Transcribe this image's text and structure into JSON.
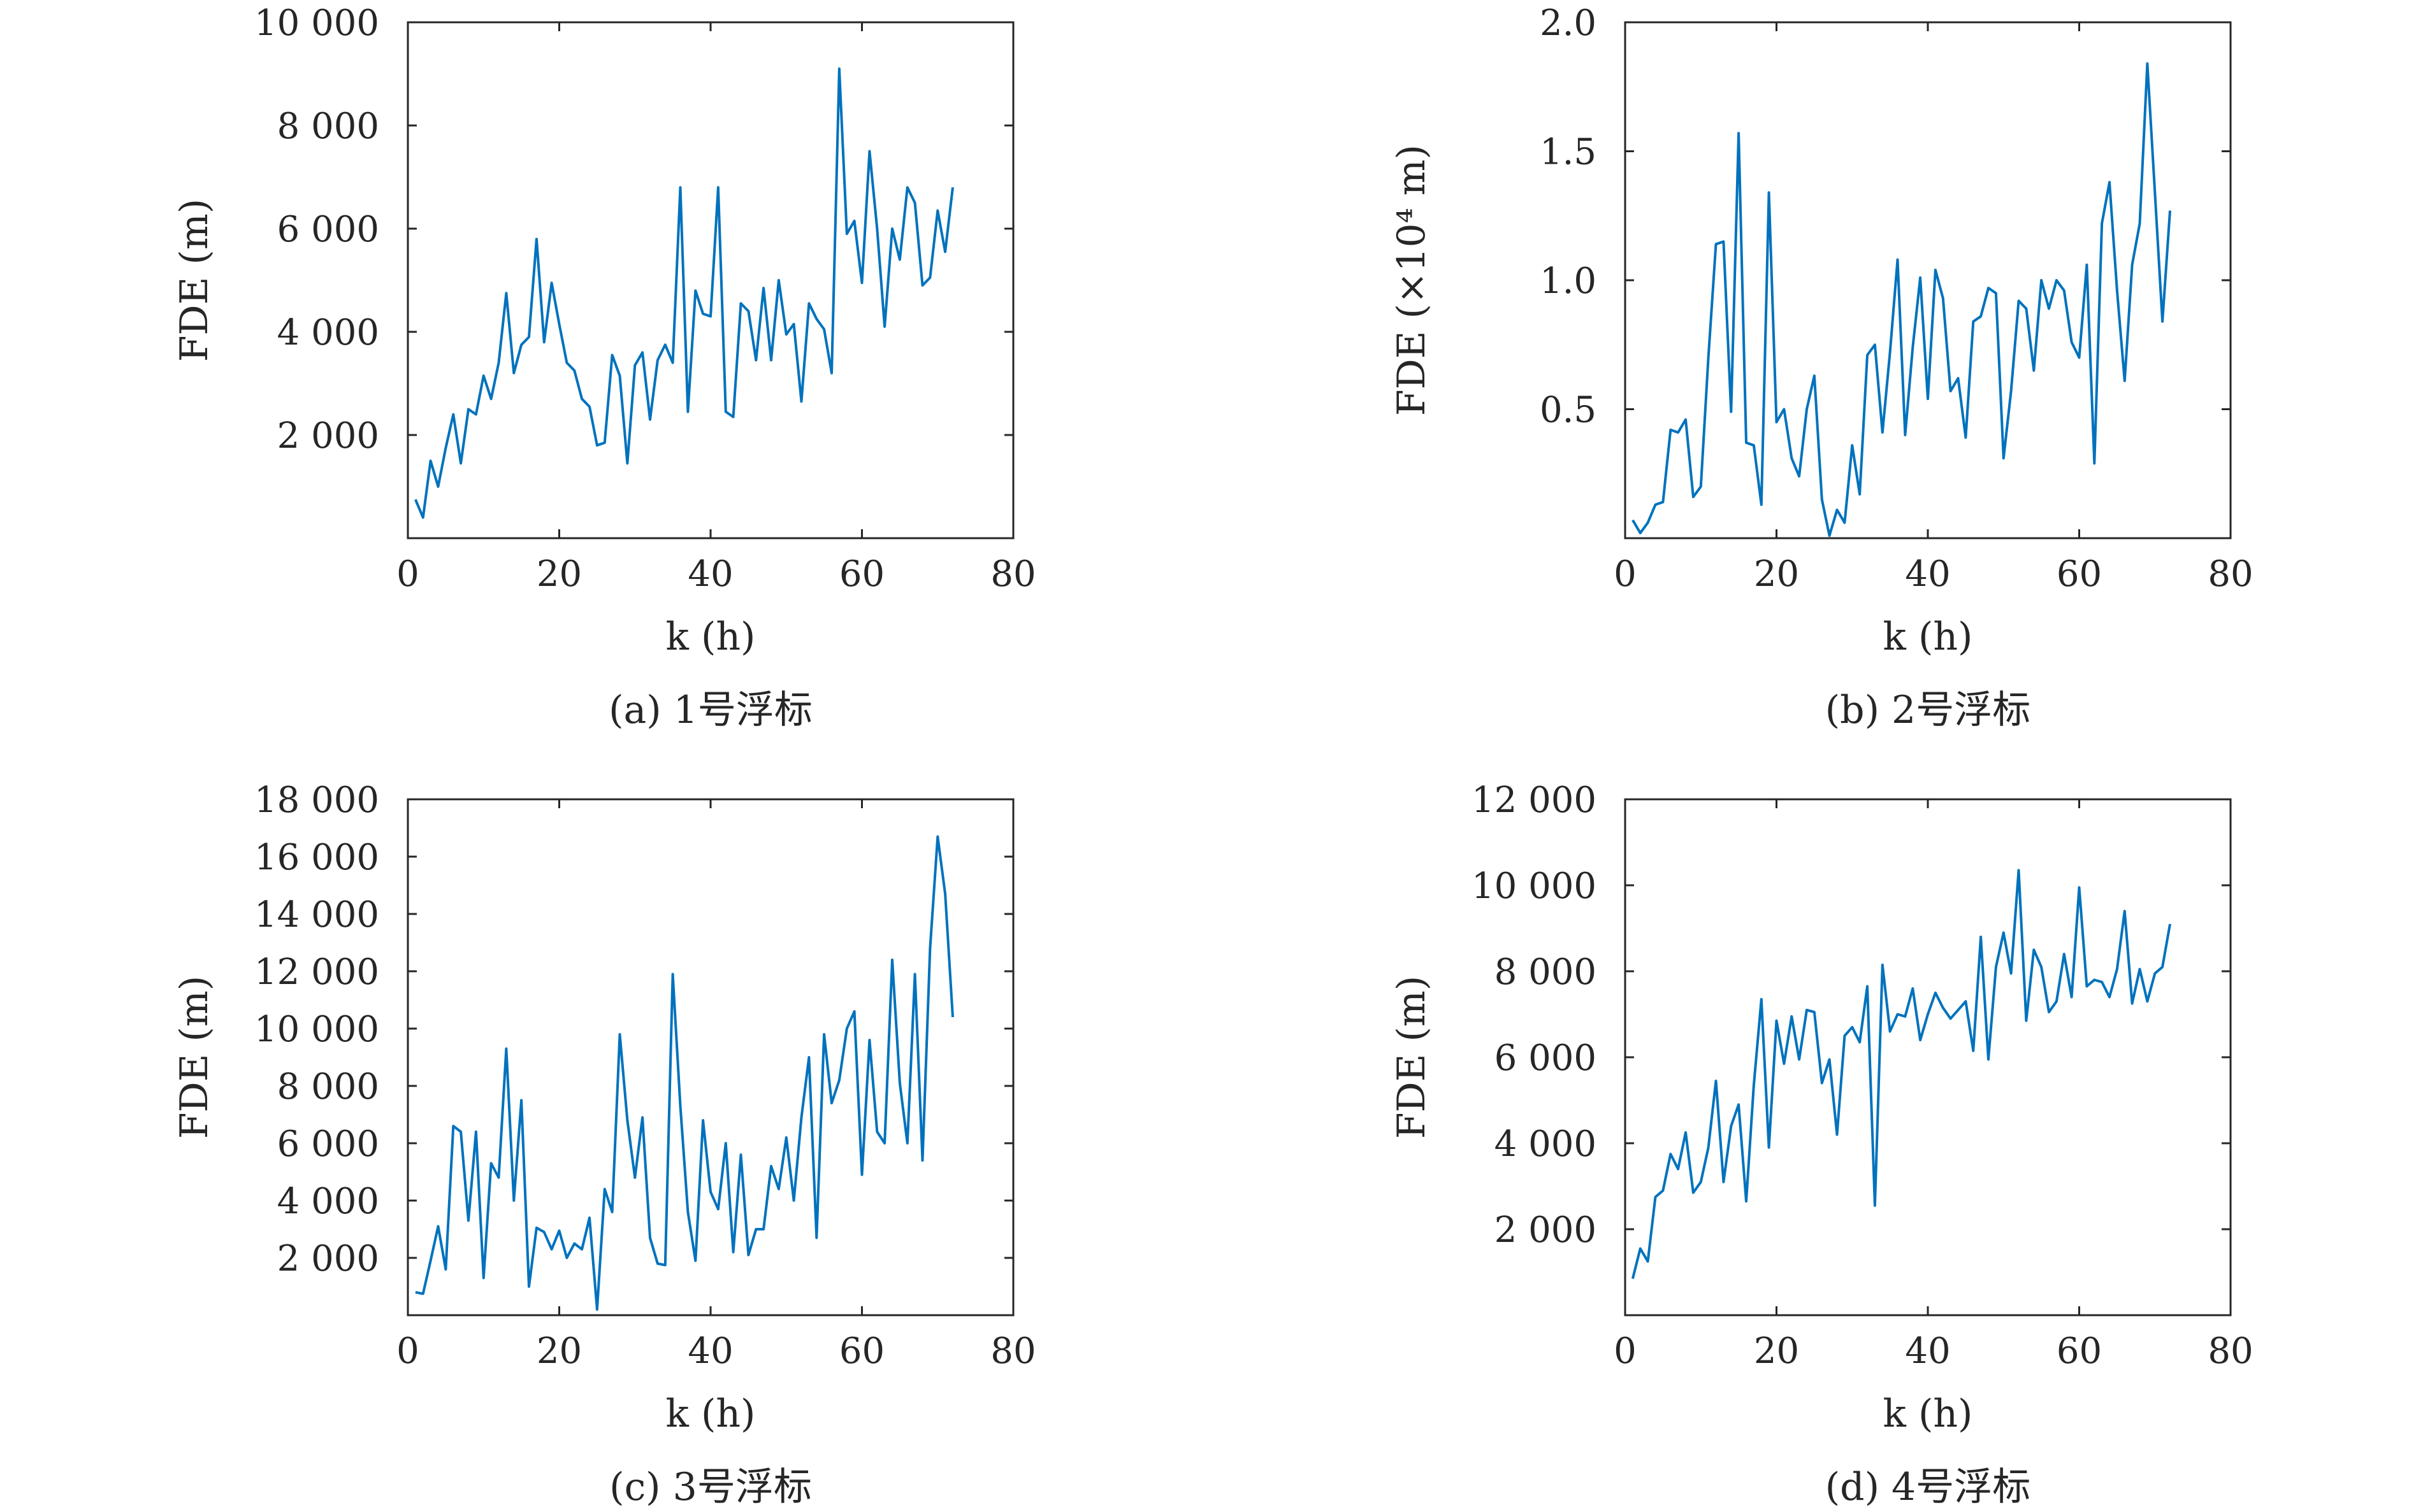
{
  "chart_data": [
    {
      "type": "line",
      "caption": "(a) 1号浮标",
      "xlabel": "k (h)",
      "ylabel": "FDE (m)",
      "xlim": [
        0,
        80
      ],
      "ylim": [
        0,
        10000
      ],
      "xticks": [
        0,
        20,
        40,
        60,
        80
      ],
      "xtick_labels": [
        "0",
        "20",
        "40",
        "60",
        "80"
      ],
      "yticks": [
        2000,
        4000,
        6000,
        8000,
        10000
      ],
      "ytick_labels": [
        "2 000",
        "4 000",
        "6 000",
        "8 000",
        "10 000"
      ],
      "color": "#0072BD",
      "grid": false,
      "series": [
        {
          "x": [
            1,
            2,
            3,
            4,
            5,
            6,
            7,
            8,
            9,
            10,
            11,
            12,
            13,
            14,
            15,
            16,
            17,
            18,
            19,
            20,
            21,
            22,
            23,
            24,
            25,
            26,
            27,
            28,
            29,
            30,
            31,
            32,
            33,
            34,
            35,
            36,
            37,
            38,
            39,
            40,
            41,
            42,
            43,
            44,
            45,
            46,
            47,
            48,
            49,
            50,
            51,
            52,
            53,
            54,
            55,
            56,
            57,
            58,
            59,
            60,
            61,
            62,
            63,
            64,
            65,
            66,
            67,
            68,
            69,
            70,
            71,
            72
          ],
          "y": [
            750,
            400,
            1500,
            1000,
            1750,
            2400,
            1450,
            2500,
            2400,
            3150,
            2700,
            3400,
            4750,
            3200,
            3750,
            3900,
            5800,
            3800,
            4950,
            4150,
            3400,
            3250,
            2700,
            2550,
            1800,
            1850,
            3550,
            3150,
            1450,
            3350,
            3600,
            2300,
            3450,
            3750,
            3400,
            6800,
            2450,
            4800,
            4350,
            4300,
            6800,
            2450,
            2350,
            4550,
            4400,
            3450,
            4850,
            3450,
            5000,
            3950,
            4150,
            2650,
            4550,
            4250,
            4050,
            3200,
            9100,
            5900,
            6150,
            4950,
            7500,
            6000,
            4100,
            6000,
            5400,
            6800,
            6500,
            4900,
            5050,
            6350,
            5550,
            6800
          ]
        }
      ]
    },
    {
      "type": "line",
      "caption": "(b) 2号浮标",
      "xlabel": "k (h)",
      "ylabel": "FDE (×10⁴ m)",
      "xlim": [
        0,
        80
      ],
      "ylim": [
        0,
        2.0
      ],
      "xticks": [
        0,
        20,
        40,
        60,
        80
      ],
      "xtick_labels": [
        "0",
        "20",
        "40",
        "60",
        "80"
      ],
      "yticks": [
        0.5,
        1.0,
        1.5,
        2.0
      ],
      "ytick_labels": [
        "0.5",
        "1.0",
        "1.5",
        "2.0"
      ],
      "color": "#0072BD",
      "grid": false,
      "series": [
        {
          "x": [
            1,
            2,
            3,
            4,
            5,
            6,
            7,
            8,
            9,
            10,
            11,
            12,
            13,
            14,
            15,
            16,
            17,
            18,
            19,
            20,
            21,
            22,
            23,
            24,
            25,
            26,
            27,
            28,
            29,
            30,
            31,
            32,
            33,
            34,
            35,
            36,
            37,
            38,
            39,
            40,
            41,
            42,
            43,
            44,
            45,
            46,
            47,
            48,
            49,
            50,
            51,
            52,
            53,
            54,
            55,
            56,
            57,
            58,
            59,
            60,
            61,
            62,
            63,
            64,
            65,
            66,
            67,
            68,
            69,
            70,
            71,
            72
          ],
          "y": [
            0.07,
            0.02,
            0.06,
            0.13,
            0.14,
            0.42,
            0.41,
            0.46,
            0.16,
            0.2,
            0.7,
            1.14,
            1.15,
            0.49,
            1.57,
            0.37,
            0.36,
            0.13,
            1.34,
            0.45,
            0.5,
            0.31,
            0.24,
            0.5,
            0.63,
            0.15,
            0.01,
            0.11,
            0.06,
            0.36,
            0.17,
            0.71,
            0.75,
            0.41,
            0.72,
            1.08,
            0.4,
            0.74,
            1.01,
            0.54,
            1.04,
            0.93,
            0.57,
            0.62,
            0.39,
            0.84,
            0.86,
            0.97,
            0.95,
            0.31,
            0.57,
            0.92,
            0.89,
            0.65,
            1.0,
            0.89,
            1.0,
            0.96,
            0.76,
            0.7,
            1.06,
            0.29,
            1.22,
            1.38,
            0.96,
            0.61,
            1.06,
            1.22,
            1.84,
            1.34,
            0.84,
            1.27
          ]
        }
      ]
    },
    {
      "type": "line",
      "caption": "(c) 3号浮标",
      "xlabel": "k (h)",
      "ylabel": "FDE (m)",
      "xlim": [
        0,
        80
      ],
      "ylim": [
        0,
        18000
      ],
      "xticks": [
        0,
        20,
        40,
        60,
        80
      ],
      "xtick_labels": [
        "0",
        "20",
        "40",
        "60",
        "80"
      ],
      "yticks": [
        2000,
        4000,
        6000,
        8000,
        10000,
        12000,
        14000,
        16000,
        18000
      ],
      "ytick_labels": [
        "2 000",
        "4 000",
        "6 000",
        "8 000",
        "10 000",
        "12 000",
        "14 000",
        "16 000",
        "18 000"
      ],
      "color": "#0072BD",
      "grid": false,
      "series": [
        {
          "x": [
            1,
            2,
            3,
            4,
            5,
            6,
            7,
            8,
            9,
            10,
            11,
            12,
            13,
            14,
            15,
            16,
            17,
            18,
            19,
            20,
            21,
            22,
            23,
            24,
            25,
            26,
            27,
            28,
            29,
            30,
            31,
            32,
            33,
            34,
            35,
            36,
            37,
            38,
            39,
            40,
            41,
            42,
            43,
            44,
            45,
            46,
            47,
            48,
            49,
            50,
            51,
            52,
            53,
            54,
            55,
            56,
            57,
            58,
            59,
            60,
            61,
            62,
            63,
            64,
            65,
            66,
            67,
            68,
            69,
            70,
            71,
            72
          ],
          "y": [
            800,
            750,
            1900,
            3100,
            1600,
            6600,
            6400,
            3300,
            6400,
            1300,
            5300,
            4800,
            9300,
            4000,
            7500,
            1000,
            3050,
            2900,
            2300,
            2950,
            2000,
            2500,
            2300,
            3400,
            200,
            4400,
            3600,
            9800,
            6800,
            4800,
            6900,
            2700,
            1800,
            1750,
            11900,
            7300,
            3600,
            1900,
            6800,
            4300,
            3700,
            6000,
            2200,
            5600,
            2100,
            3000,
            3000,
            5200,
            4400,
            6200,
            4000,
            6900,
            9000,
            2700,
            9800,
            7400,
            8200,
            10000,
            10600,
            4900,
            9600,
            6400,
            6000,
            12400,
            8100,
            6000,
            11900,
            5400,
            12800,
            16700,
            14700,
            10400
          ]
        }
      ]
    },
    {
      "type": "line",
      "caption": "(d) 4号浮标",
      "xlabel": "k (h)",
      "ylabel": "FDE (m)",
      "xlim": [
        0,
        80
      ],
      "ylim": [
        0,
        12000
      ],
      "xticks": [
        0,
        20,
        40,
        60,
        80
      ],
      "xtick_labels": [
        "0",
        "20",
        "40",
        "60",
        "80"
      ],
      "yticks": [
        2000,
        4000,
        6000,
        8000,
        10000,
        12000
      ],
      "ytick_labels": [
        "2 000",
        "4 000",
        "6 000",
        "8 000",
        "10 000",
        "12 000"
      ],
      "color": "#0072BD",
      "grid": false,
      "series": [
        {
          "x": [
            1,
            2,
            3,
            4,
            5,
            6,
            7,
            8,
            9,
            10,
            11,
            12,
            13,
            14,
            15,
            16,
            17,
            18,
            19,
            20,
            21,
            22,
            23,
            24,
            25,
            26,
            27,
            28,
            29,
            30,
            31,
            32,
            33,
            34,
            35,
            36,
            37,
            38,
            39,
            40,
            41,
            42,
            43,
            44,
            45,
            46,
            47,
            48,
            49,
            50,
            51,
            52,
            53,
            54,
            55,
            56,
            57,
            58,
            59,
            60,
            61,
            62,
            63,
            64,
            65,
            66,
            67,
            68,
            69,
            70,
            71,
            72
          ],
          "y": [
            850,
            1550,
            1250,
            2750,
            2900,
            3750,
            3400,
            4250,
            2850,
            3100,
            3900,
            5450,
            3100,
            4400,
            4900,
            2650,
            5350,
            7350,
            3900,
            6850,
            5850,
            6950,
            5950,
            7100,
            7050,
            5400,
            5950,
            4200,
            6500,
            6700,
            6350,
            7650,
            2550,
            8150,
            6600,
            7000,
            6950,
            7600,
            6400,
            7000,
            7500,
            7150,
            6900,
            7100,
            7300,
            6150,
            8800,
            5950,
            8100,
            8900,
            7950,
            10350,
            6850,
            8500,
            8100,
            7050,
            7300,
            8400,
            7400,
            9950,
            7650,
            7800,
            7750,
            7400,
            8050,
            9400,
            7250,
            8050,
            7300,
            7950,
            8100,
            9100
          ]
        }
      ]
    }
  ]
}
